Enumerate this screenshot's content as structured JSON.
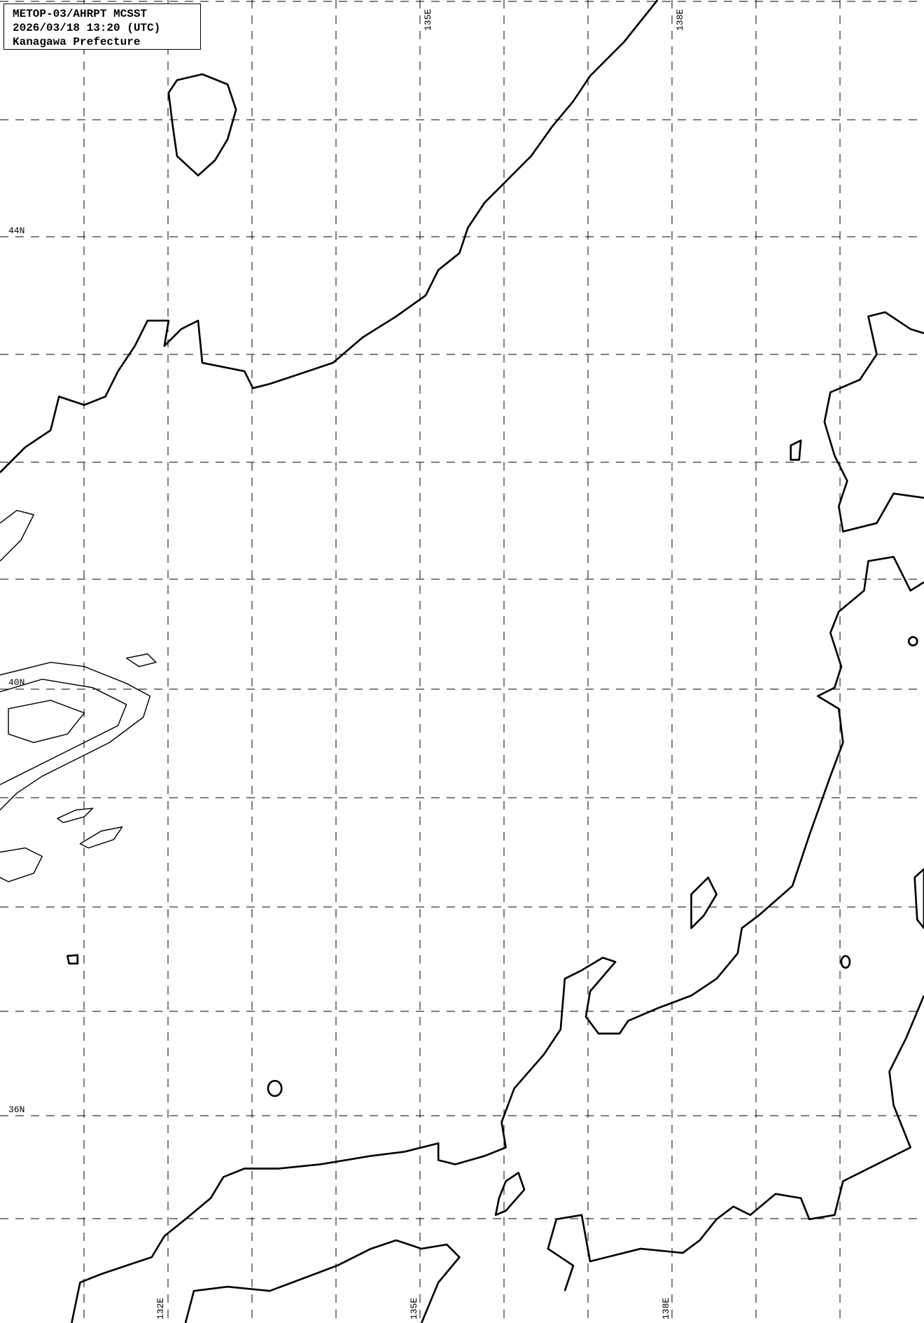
{
  "header": {
    "line1": "METOP-03/AHRPT MCSST",
    "line2": "2026/03/18 13:20 (UTC)",
    "line3": "Kanagawa Prefecture"
  },
  "grid": {
    "lat_labels": [
      "44N",
      "40N",
      "36N"
    ],
    "lon_labels_top": [
      "135E",
      "138E"
    ],
    "lon_labels_bottom": [
      "132E",
      "135E",
      "138E"
    ],
    "line_style": "dashed",
    "color": "#000000"
  },
  "map": {
    "background": "#ffffff",
    "coastline_color": "#000000"
  }
}
